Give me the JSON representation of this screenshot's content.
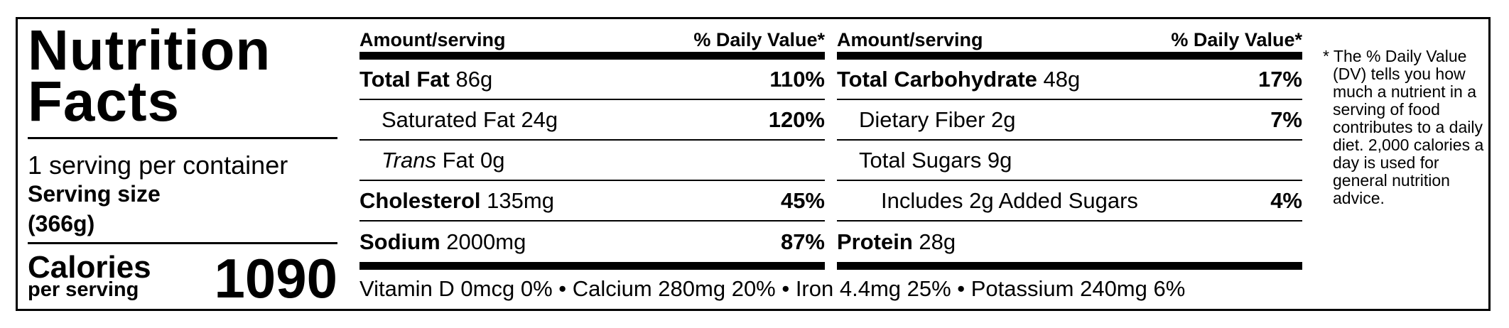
{
  "title": "Nutrition Facts",
  "servings": "1 serving per container",
  "serving_size_label": "Serving size",
  "serving_size": "(366g)",
  "calories_label": "Calories",
  "calories_sub": "per serving",
  "calories": "1090",
  "columns": [
    {
      "header": [
        "Amount/serving",
        "% Daily Value*"
      ],
      "rows": [
        {
          "name": "Total Fat",
          "amount": "86g",
          "dv": "110%",
          "bold": true,
          "indent": 0
        },
        {
          "name": "Saturated Fat 24g",
          "dv": "120%",
          "indent": 1
        },
        {
          "italic": "Trans",
          "name": "Fat 0g",
          "indent": 1
        },
        {
          "name": "Cholesterol",
          "amount": "135mg",
          "dv": "45%",
          "bold": true,
          "indent": 0
        },
        {
          "name": "Sodium",
          "amount": "2000mg",
          "dv": "87%",
          "bold": true,
          "indent": 0
        }
      ]
    },
    {
      "header": [
        "Amount/serving",
        "% Daily Value*"
      ],
      "rows": [
        {
          "name": "Total Carbohydrate",
          "amount": "48g",
          "dv": "17%",
          "bold": true,
          "indent": 0
        },
        {
          "name": "Dietary Fiber 2g",
          "dv": "7%",
          "indent": 1
        },
        {
          "name": "Total Sugars 9g",
          "indent": 1
        },
        {
          "name": "Includes 2g Added Sugars",
          "dv": "4%",
          "indent": 2
        },
        {
          "name": "Protein",
          "amount": "28g",
          "bold": true,
          "indent": 0
        }
      ]
    }
  ],
  "vitamins": "Vitamin D 0mcg 0% • Calcium 280mg 20% • Iron 4.4mg 25% • Potassium 240mg 6%",
  "footnote": "* The % Daily Value (DV) tells you how much a nutrient in a serving of food contributes to a daily diet. 2,000 calories a day is used for general nutrition advice."
}
